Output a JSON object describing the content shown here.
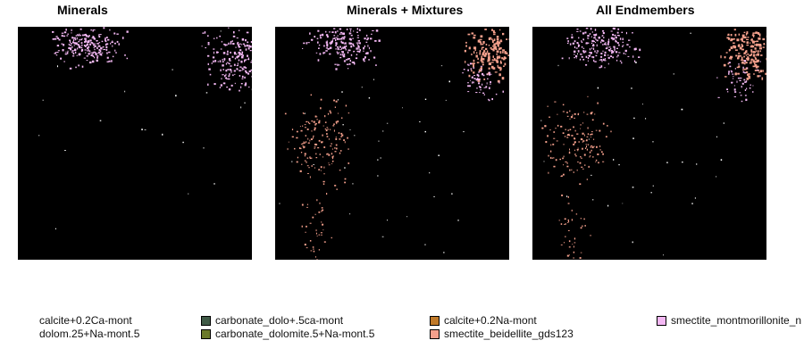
{
  "panels": [
    {
      "title": "Minerals"
    },
    {
      "title": "Minerals + Mixtures"
    },
    {
      "title": "All Endmembers"
    }
  ],
  "legend": [
    {
      "label": "calcite+0.2Ca-mont",
      "color": "#7a2e6e"
    },
    {
      "label": "dolom.25+Na-mont.5",
      "color": "#5a3a8a"
    },
    {
      "label": "carbonate_dolo+.5ca-mont",
      "color": "#3f5a46"
    },
    {
      "label": "carbonate_dolomite.5+Na-mont.5",
      "color": "#6b7a2a"
    },
    {
      "label": "calcite+0.2Na-mont",
      "color": "#c07a2a"
    },
    {
      "label": "smectite_beidellite_gds123",
      "color": "#f4a08c"
    },
    {
      "label": "smectite_montmorillonite_n",
      "color": "#f4b8f4"
    }
  ],
  "colors": {
    "background": "#000000",
    "pink": "#f4b8f4",
    "salmon": "#f4a08c"
  }
}
